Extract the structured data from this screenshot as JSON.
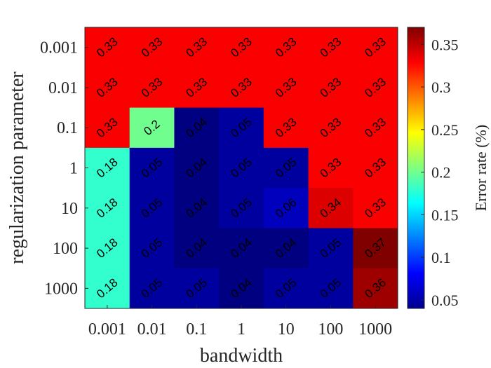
{
  "chart_data": {
    "type": "heatmap",
    "xlabel": "bandwidth",
    "ylabel": "regularization parameter",
    "colorbar_label": "Error rate (%)",
    "x_categories": [
      "0.001",
      "0.01",
      "0.1",
      "1",
      "10",
      "100",
      "1000"
    ],
    "y_categories": [
      "0.001",
      "0.01",
      "0.1",
      "1",
      "10",
      "100",
      "1000"
    ],
    "values": [
      [
        0.33,
        0.33,
        0.33,
        0.33,
        0.33,
        0.33,
        0.33
      ],
      [
        0.33,
        0.33,
        0.33,
        0.33,
        0.33,
        0.33,
        0.33
      ],
      [
        0.33,
        0.2,
        0.04,
        0.05,
        0.33,
        0.33,
        0.33
      ],
      [
        0.18,
        0.05,
        0.04,
        0.05,
        0.05,
        0.33,
        0.33
      ],
      [
        0.18,
        0.05,
        0.04,
        0.05,
        0.06,
        0.34,
        0.33
      ],
      [
        0.18,
        0.05,
        0.04,
        0.04,
        0.04,
        0.05,
        0.37
      ],
      [
        0.18,
        0.05,
        0.05,
        0.04,
        0.05,
        0.05,
        0.36
      ]
    ],
    "cell_labels": [
      [
        "0.33",
        "0.33",
        "0.33",
        "0.33",
        "0.33",
        "0.33",
        "0.33"
      ],
      [
        "0.33",
        "0.33",
        "0.33",
        "0.33",
        "0.33",
        "0.33",
        "0.33"
      ],
      [
        "0.33",
        "0.2",
        "0.04",
        "0.05",
        "0.33",
        "0.33",
        "0.33"
      ],
      [
        "0.18",
        "0.05",
        "0.04",
        "0.05",
        "0.05",
        "0.33",
        "0.33"
      ],
      [
        "0.18",
        "0.05",
        "0.04",
        "0.05",
        "0.06",
        "0.34",
        "0.33"
      ],
      [
        "0.18",
        "0.05",
        "0.04",
        "0.04",
        "0.04",
        "0.05",
        "0.37"
      ],
      [
        "0.18",
        "0.05",
        "0.05",
        "0.04",
        "0.05",
        "0.05",
        "0.36"
      ]
    ],
    "color_range": [
      0.04,
      0.37
    ],
    "colormap": "jet",
    "colorbar_ticks": [
      0.05,
      0.1,
      0.15,
      0.2,
      0.25,
      0.3,
      0.35
    ],
    "colorbar_tick_labels": [
      "0.05",
      "0.1",
      "0.15",
      "0.2",
      "0.25",
      "0.3",
      "0.35"
    ]
  }
}
